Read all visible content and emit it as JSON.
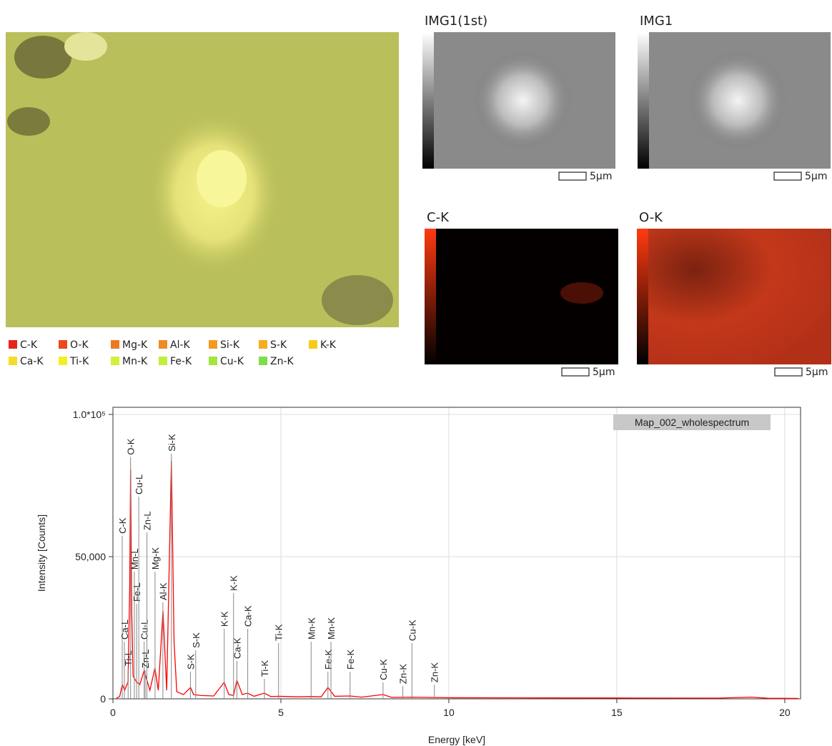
{
  "map_legend": [
    {
      "label": "C-K",
      "color": "#e8231b"
    },
    {
      "label": "O-K",
      "color": "#ea4a1c"
    },
    {
      "label": "Mg-K",
      "color": "#ee7a20"
    },
    {
      "label": "Al-K",
      "color": "#f08a22"
    },
    {
      "label": "Si-K",
      "color": "#f39a20"
    },
    {
      "label": "S-K",
      "color": "#f5ac1e"
    },
    {
      "label": "K-K",
      "color": "#f7cc16"
    },
    {
      "label": "Ca-K",
      "color": "#f7db2c"
    },
    {
      "label": "Ti-K",
      "color": "#f4ef22"
    },
    {
      "label": "Mn-K",
      "color": "#d6ee3c"
    },
    {
      "label": "Fe-K",
      "color": "#c2ee3c"
    },
    {
      "label": "Cu-K",
      "color": "#a4e63a"
    },
    {
      "label": "Zn-K",
      "color": "#7ede4a"
    }
  ],
  "panels": [
    {
      "title": "IMG1(1st)",
      "scale_bar": "5μm"
    },
    {
      "title": "IMG1",
      "scale_bar": "5μm"
    },
    {
      "title": "C-K",
      "scale_bar": "5μm"
    },
    {
      "title": "O-K",
      "scale_bar": "5μm"
    }
  ],
  "chart_data": {
    "type": "line",
    "x_label": "Energy [keV]",
    "y_label": "Intensity [Counts]",
    "xlim": [
      0,
      20.47
    ],
    "ylim": [
      0,
      102500
    ],
    "xticks": [
      0,
      5,
      10,
      15,
      20
    ],
    "yticks": [
      0,
      {
        "value": 50000,
        "label": "50,000"
      },
      {
        "value": 100000,
        "label": "1.0*10⁵"
      }
    ],
    "grid": true,
    "series": [
      {
        "name": "Map_002_wholespectrum",
        "color": "#ff0000",
        "x": [
          0.1,
          0.2,
          0.28,
          0.35,
          0.45,
          0.5,
          0.525,
          0.56,
          0.6,
          0.7,
          0.8,
          0.93,
          1.0,
          1.1,
          1.25,
          1.35,
          1.49,
          1.6,
          1.74,
          1.82,
          1.9,
          2.1,
          2.31,
          2.4,
          2.6,
          3.0,
          3.31,
          3.45,
          3.59,
          3.69,
          3.85,
          4.01,
          4.2,
          4.51,
          4.7,
          4.93,
          5.5,
          5.9,
          6.2,
          6.4,
          6.6,
          7.06,
          7.4,
          8.04,
          8.3,
          8.9,
          10,
          12,
          15,
          18,
          19,
          19.5,
          20.4
        ],
        "values": [
          200,
          800,
          5000,
          3000,
          6000,
          40000,
          80700,
          30000,
          8000,
          6000,
          5000,
          10000,
          7000,
          3000,
          10800,
          3000,
          30900,
          3000,
          83700,
          20000,
          2500,
          1500,
          4000,
          1500,
          1200,
          1000,
          5800,
          1500,
          1200,
          6500,
          1500,
          2000,
          900,
          2000,
          800,
          900,
          700,
          800,
          700,
          4000,
          900,
          1000,
          600,
          1500,
          500,
          600,
          400,
          350,
          300,
          250,
          600,
          200,
          150
        ]
      }
    ],
    "legend_position": "upper right",
    "markers": [
      {
        "label": "C-K",
        "x": 0.277,
        "y": 57300
      },
      {
        "label": "Ca-L",
        "x": 0.341,
        "y": 20100
      },
      {
        "label": "Ti-L",
        "x": 0.452,
        "y": 10800
      },
      {
        "label": "O-K",
        "x": 0.525,
        "y": 85000
      },
      {
        "label": "Mn-L",
        "x": 0.637,
        "y": 44700
      },
      {
        "label": "Fe-L",
        "x": 0.705,
        "y": 33400
      },
      {
        "label": "Cu-L",
        "x": 0.77,
        "y": 71100
      },
      {
        "label": "Cu-L",
        "x": 0.93,
        "y": 20100
      },
      {
        "label": "Zn-L",
        "x": 0.96,
        "y": 10000
      },
      {
        "label": "Zn-L",
        "x": 1.012,
        "y": 58500
      },
      {
        "label": "Mg-K",
        "x": 1.254,
        "y": 44700
      },
      {
        "label": "Al-K",
        "x": 1.487,
        "y": 33900
      },
      {
        "label": "Si-K",
        "x": 1.74,
        "y": 86200
      },
      {
        "label": "S-K",
        "x": 2.307,
        "y": 9550
      },
      {
        "label": "S-K",
        "x": 2.464,
        "y": 17100
      },
      {
        "label": "K-K",
        "x": 3.313,
        "y": 24600
      },
      {
        "label": "K-K",
        "x": 3.59,
        "y": 37200
      },
      {
        "label": "Ca-K",
        "x": 3.69,
        "y": 13300
      },
      {
        "label": "Ca-K",
        "x": 4.013,
        "y": 24600
      },
      {
        "label": "Ti-K",
        "x": 4.51,
        "y": 7000
      },
      {
        "label": "Ti-K",
        "x": 4.93,
        "y": 19600
      },
      {
        "label": "Mn-K",
        "x": 5.9,
        "y": 20100
      },
      {
        "label": "Fe-K",
        "x": 6.4,
        "y": 9550
      },
      {
        "label": "Mn-K",
        "x": 6.49,
        "y": 20100
      },
      {
        "label": "Fe-K",
        "x": 7.06,
        "y": 9550
      },
      {
        "label": "Cu-K",
        "x": 8.04,
        "y": 5800
      },
      {
        "label": "Zn-K",
        "x": 8.63,
        "y": 4500
      },
      {
        "label": "Cu-K",
        "x": 8.9,
        "y": 19600
      },
      {
        "label": "Zn-K",
        "x": 9.57,
        "y": 5000
      }
    ]
  }
}
